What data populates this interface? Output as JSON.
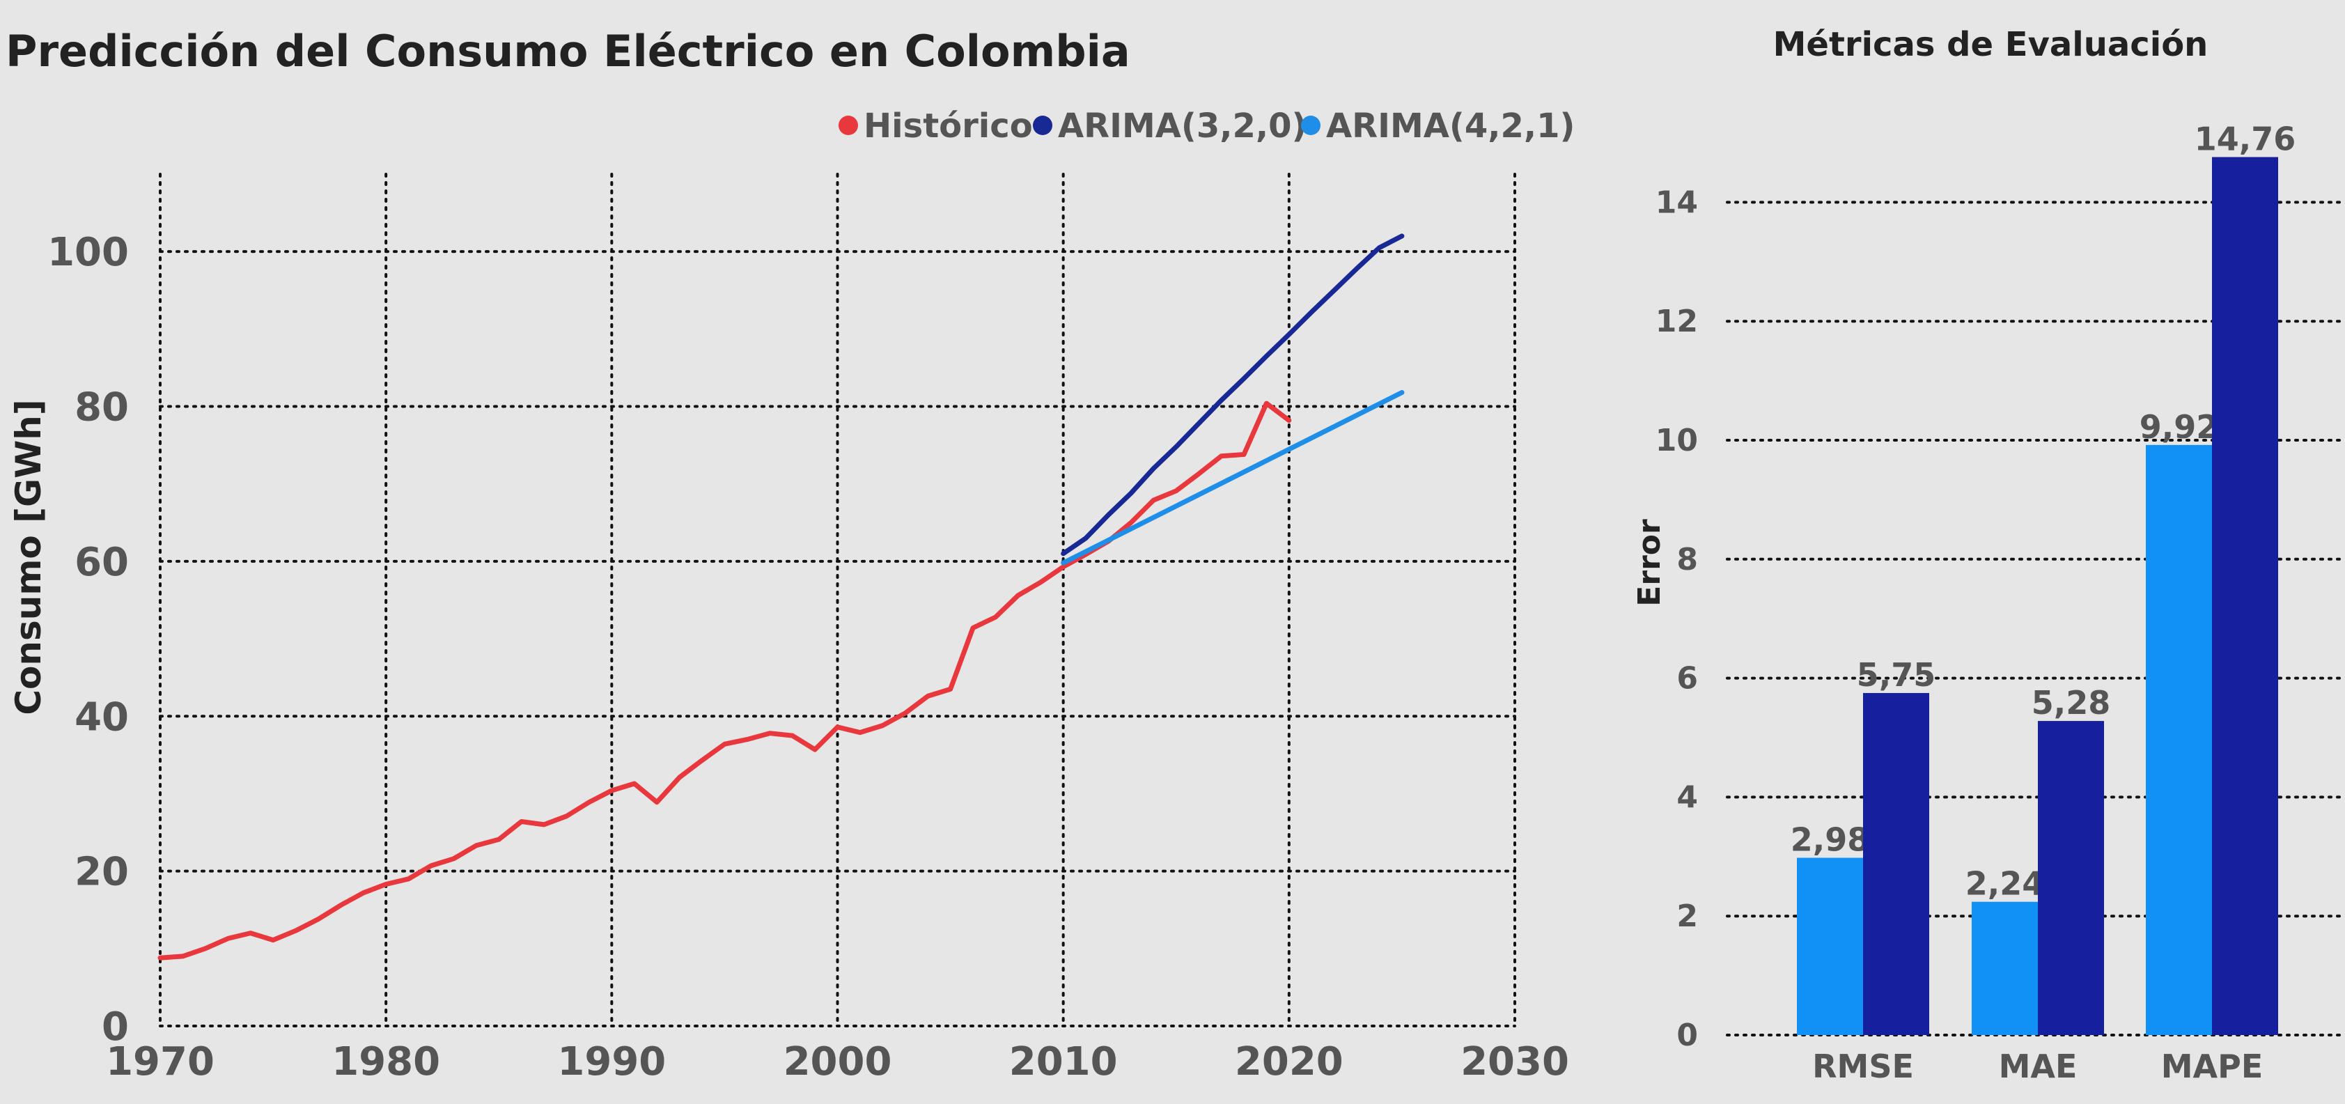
{
  "chart_data": [
    {
      "type": "line",
      "title": "Predicción del Consumo Eléctrico en Colombia",
      "xlabel": "",
      "ylabel": "Consumo [GWh]",
      "xlim": [
        1970,
        2030
      ],
      "ylim": [
        0,
        110
      ],
      "xticks": [
        "1970",
        "1980",
        "1990",
        "2000",
        "2010",
        "2020",
        "2030"
      ],
      "yticks": [
        "0",
        "20",
        "40",
        "60",
        "80",
        "100"
      ],
      "grid": true,
      "legend_position": "top-right",
      "series": [
        {
          "name": "Histórico",
          "color": "#e8383d",
          "x": [
            1970,
            1971,
            1972,
            1973,
            1974,
            1975,
            1976,
            1977,
            1978,
            1979,
            1980,
            1981,
            1982,
            1983,
            1984,
            1985,
            1986,
            1987,
            1988,
            1989,
            1990,
            1991,
            1992,
            1993,
            1994,
            1995,
            1996,
            1997,
            1998,
            1999,
            2000,
            2001,
            2002,
            2003,
            2004,
            2005,
            2006,
            2007,
            2008,
            2009,
            2010,
            2011,
            2012,
            2013,
            2014,
            2015,
            2016,
            2017,
            2018,
            2019,
            2020
          ],
          "y": [
            8.8,
            9.0,
            10.0,
            11.3,
            12.0,
            11.1,
            12.3,
            13.8,
            15.6,
            17.2,
            18.3,
            19.0,
            20.7,
            21.6,
            23.3,
            24.1,
            26.4,
            26.0,
            27.1,
            28.9,
            30.4,
            31.3,
            28.9,
            32.1,
            34.3,
            36.4,
            37.0,
            37.8,
            37.5,
            35.7,
            38.6,
            37.9,
            38.8,
            40.4,
            42.6,
            43.5,
            51.4,
            52.8,
            55.6,
            57.3,
            59.3,
            60.9,
            62.6,
            65.0,
            67.9,
            69.1,
            71.3,
            73.6,
            73.8,
            80.4,
            78.2
          ]
        },
        {
          "name": "ARIMA(3,2,0)",
          "color": "#182894",
          "x": [
            2010,
            2011,
            2012,
            2013,
            2014,
            2015,
            2016,
            2017,
            2018,
            2019,
            2020,
            2021,
            2022,
            2023,
            2024,
            2025
          ],
          "y": [
            61.0,
            63.0,
            66.0,
            68.8,
            72.0,
            74.8,
            77.8,
            80.8,
            83.6,
            86.5,
            89.3,
            92.2,
            95.0,
            97.8,
            100.5,
            102.0
          ]
        },
        {
          "name": "ARIMA(4,2,1)",
          "color": "#1e8ee8",
          "x": [
            2010,
            2025
          ],
          "y": [
            59.8,
            81.8
          ]
        }
      ]
    },
    {
      "type": "bar",
      "title": "Métricas de Evaluación",
      "xlabel": "",
      "ylabel": "Error",
      "ylim": [
        0,
        15
      ],
      "yticks": [
        "0",
        "2",
        "4",
        "6",
        "8",
        "10",
        "12",
        "14"
      ],
      "grid": true,
      "categories": [
        "RMSE",
        "MAE",
        "MAPE"
      ],
      "series": [
        {
          "color": "#1191f5",
          "values": [
            2.98,
            2.24,
            9.92
          ],
          "labels": [
            "2,98",
            "2,24",
            "9,92"
          ]
        },
        {
          "color": "#161f9d",
          "values": [
            5.75,
            5.28,
            14.76
          ],
          "labels": [
            "5,75",
            "5,28",
            "14,76"
          ]
        }
      ]
    }
  ]
}
